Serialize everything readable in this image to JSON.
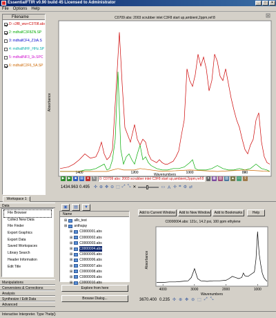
{
  "window": {
    "title": "EssentialFTIR v0.90 build 45 Licensed to Administrator",
    "controls": [
      "_",
      "□",
      "×"
    ]
  },
  "menu": [
    "File",
    "Options",
    "Help"
  ],
  "file_list": {
    "header": "Filename",
    "items": [
      {
        "label": "D: c3f8_ww+C3708.abs",
        "checked": true,
        "color": "#cc0000"
      },
      {
        "label": "2: mdhallC3F8ZN.SP",
        "checked": true,
        "color": "#00aa00"
      },
      {
        "label": "3: mdhallCF4_Z1tA.S",
        "checked": false,
        "color": "#0000cc"
      },
      {
        "label": "4: mdhallNHF_HHz.SP",
        "checked": false,
        "color": "#00aaaa"
      },
      {
        "label": "5: mdhallNF3_1k.SPC",
        "checked": false,
        "color": "#cc00cc"
      },
      {
        "label": "6: mdhallC2F6_5A.SP",
        "checked": true,
        "color": "#cc6600"
      }
    ]
  },
  "main_chart": {
    "title": "C0709 abs: 2003 scrubber inlet C3F8 start up,ambient,2ppm,ref:8",
    "xlabel": "Wavenumbers",
    "ylabel": "Absorbance",
    "x_ticks": [
      "1400",
      "1200",
      "1000",
      "800"
    ],
    "cursor_x": "1434.963",
    "cursor_y": "0.495",
    "spectrum_select": "0: C0709 abs: 2003 scrubber inlet C3F8 start up,ambient,2ppm,ref:8"
  },
  "chart_data": [
    {
      "type": "line",
      "title": "C0709 abs: 2003 scrubber inlet C3F8 start up,ambient,2ppm,ref:8",
      "xlabel": "Wavenumbers",
      "ylabel": "Absorbance",
      "xlim": [
        1470,
        710
      ],
      "ylim": [
        0,
        1
      ],
      "grid": false,
      "series": [
        {
          "color": "#cc0000",
          "x": [
            1470,
            1440,
            1420,
            1400,
            1380,
            1360,
            1340,
            1330,
            1320,
            1310,
            1300,
            1290,
            1280,
            1265,
            1255,
            1245,
            1235,
            1225,
            1215,
            1200,
            1190,
            1180,
            1170,
            1160,
            1150,
            1140,
            1130,
            1120,
            1110,
            1100,
            1090,
            1080,
            1070,
            1060,
            1050,
            1040,
            1030,
            1020,
            1010,
            1000,
            990,
            980,
            970,
            960,
            950,
            940,
            930,
            920,
            910,
            900,
            890,
            880,
            870,
            860,
            850,
            840,
            830,
            820,
            810,
            800,
            790,
            780,
            770,
            760,
            750,
            740,
            730,
            720,
            710
          ],
          "y": [
            0.02,
            0.03,
            0.05,
            0.08,
            0.12,
            0.09,
            0.1,
            0.14,
            0.2,
            0.12,
            0.08,
            0.1,
            0.15,
            0.62,
            0.95,
            0.6,
            0.3,
            0.25,
            0.2,
            0.32,
            0.22,
            0.18,
            0.22,
            0.2,
            0.12,
            0.08,
            0.07,
            0.06,
            0.08,
            0.06,
            0.05,
            0.05,
            0.06,
            0.07,
            0.1,
            0.14,
            0.25,
            0.35,
            0.7,
            0.62,
            0.58,
            0.66,
            0.8,
            0.72,
            0.78,
            0.7,
            0.55,
            0.62,
            0.8,
            0.75,
            0.65,
            0.62,
            0.7,
            0.6,
            0.5,
            0.42,
            0.35,
            0.3,
            0.22,
            0.15,
            0.12,
            0.18,
            0.22,
            0.35,
            0.4,
            0.2,
            0.1,
            0.06,
            0.05
          ]
        },
        {
          "color": "#00aa00",
          "x": [
            1470,
            1400,
            1380,
            1360,
            1340,
            1310,
            1300,
            1290,
            1280,
            1270,
            1260,
            1250,
            1240,
            1230,
            1220,
            1210,
            1200,
            1190,
            1180,
            1170,
            1160,
            1150,
            1140,
            1120,
            1100,
            1080,
            1060,
            1040,
            1020,
            1000,
            990,
            980,
            970,
            960,
            940,
            920,
            900,
            880,
            860,
            840,
            820,
            800,
            780,
            760,
            740,
            720,
            710
          ],
          "y": [
            0.0,
            0.0,
            0.01,
            0.01,
            0.02,
            0.05,
            0.01,
            0.02,
            0.08,
            0.22,
            0.68,
            0.15,
            0.05,
            0.1,
            0.12,
            0.08,
            0.05,
            0.12,
            0.18,
            0.08,
            0.1,
            0.06,
            0.04,
            0.02,
            0.01,
            0.01,
            0.02,
            0.02,
            0.03,
            0.06,
            0.08,
            0.02,
            0.01,
            0.01,
            0.01,
            0.02,
            0.04,
            0.02,
            0.01,
            0.01,
            0.02,
            0.01,
            0.02,
            0.05,
            0.02,
            0.01,
            0.0
          ]
        },
        {
          "color": "#cc6600",
          "x": [
            1470,
            1300,
            1280,
            1260,
            1240,
            1200,
            1180,
            1100,
            1000,
            900,
            800,
            710
          ],
          "y": [
            0.0,
            0.0,
            0.01,
            0.02,
            0.01,
            0.01,
            0.02,
            0.0,
            0.01,
            0.0,
            0.01,
            0.0
          ]
        }
      ]
    },
    {
      "type": "line",
      "title": "C0000004.abs: 121c, 14.2 psi, 100 ppm ethylene",
      "xlabel": "Wavenumbers",
      "ylabel": "Absorbance",
      "xlim": [
        4200,
        700
      ],
      "ylim": [
        0,
        1
      ],
      "grid": false,
      "series": [
        {
          "color": "#000000",
          "x": [
            4200,
            4000,
            3800,
            3600,
            3400,
            3200,
            3100,
            3000,
            2900,
            2800,
            2600,
            2400,
            2200,
            2000,
            1900,
            1800,
            1700,
            1600,
            1500,
            1450,
            1400,
            1300,
            1200,
            1100,
            1050,
            1000,
            950,
            900,
            850,
            800,
            750,
            700
          ],
          "y": [
            0.03,
            0.03,
            0.04,
            0.04,
            0.05,
            0.06,
            0.12,
            0.28,
            0.1,
            0.06,
            0.05,
            0.06,
            0.06,
            0.07,
            0.1,
            0.14,
            0.12,
            0.1,
            0.12,
            0.2,
            0.15,
            0.14,
            0.18,
            0.22,
            0.45,
            0.95,
            0.55,
            0.35,
            0.2,
            0.12,
            0.08,
            0.05
          ]
        }
      ]
    }
  ],
  "workspace_tab": "Workspace 1",
  "data_panel": {
    "header": "Data",
    "items": [
      "File Browser",
      "Collect New Data",
      "File Finder",
      "Export Graphics",
      "Export Data",
      "Saved Workspaces",
      "Library Search",
      "Header Information",
      "Edit Title"
    ],
    "selected": "File Browser",
    "sections": [
      "Manipulations",
      "Conversions & Corrections",
      "Analysis",
      "Synthesize / Edit Data",
      "Advanced"
    ]
  },
  "file_browser": {
    "column": "Name",
    "tree": [
      {
        "label": "allb_test",
        "kind": "folder",
        "indent": 1
      },
      {
        "label": "anthajay",
        "kind": "folder",
        "indent": 1
      },
      {
        "label": "C0000001.abs",
        "kind": "file",
        "indent": 2
      },
      {
        "label": "C0000002.abs",
        "kind": "file",
        "indent": 2
      },
      {
        "label": "C0000003.abs",
        "kind": "file",
        "indent": 2
      },
      {
        "label": "C0000004.abs",
        "kind": "file",
        "indent": 2,
        "selected": true
      },
      {
        "label": "C0000005.abs",
        "kind": "file",
        "indent": 2
      },
      {
        "label": "C0000006.abs",
        "kind": "file",
        "indent": 2
      },
      {
        "label": "C0000007.abs",
        "kind": "file",
        "indent": 2
      },
      {
        "label": "C0000008.abs",
        "kind": "file",
        "indent": 2
      },
      {
        "label": "C0000009.abs",
        "kind": "file",
        "indent": 2
      },
      {
        "label": "C0000010.abs",
        "kind": "file",
        "indent": 2
      }
    ],
    "explore_btn": "Explore from here",
    "browse_btn": "Browse Dialog..."
  },
  "preview": {
    "add_current": "Add to Current Window",
    "add_new": "Add to New Window",
    "add_bookmarks": "Add to Bookmarks",
    "help": "Help",
    "title": "C0000004.abs: 121c, 14.2 psi, 100 ppm ethylene",
    "x_ticks": [
      "4000",
      "3000",
      "2000",
      "1000"
    ],
    "xlabel": "Wavenumbers",
    "ylabel": "Absorbance",
    "cursor_x": "3670.400",
    "cursor_y": "0.235"
  },
  "status": "Interactive Interpreter.  Type ?help()",
  "colors": {
    "titlebar": "#0a246a",
    "highlight": "#0a246a"
  }
}
